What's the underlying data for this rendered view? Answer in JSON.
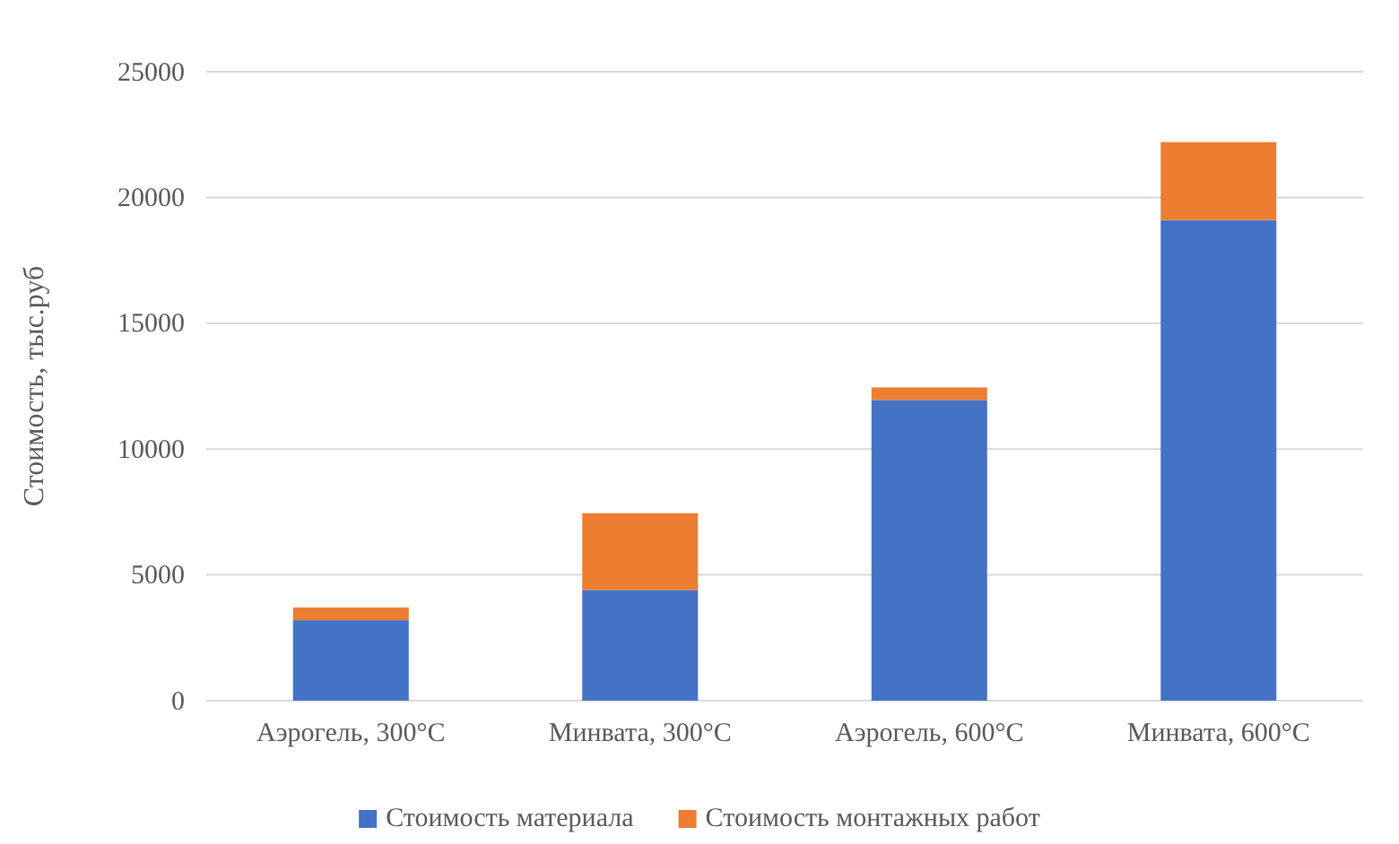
{
  "chart_data": {
    "type": "bar",
    "stacked": true,
    "ylabel": "Стоимость, тыс.руб",
    "categories": [
      "Аэрогель, 300°C",
      "Минвата, 300°C",
      "Аэрогель, 600°C",
      "Минвата, 600°C"
    ],
    "series": [
      {
        "name": "Стоимость материала",
        "color": "#4472c4",
        "values": [
          3200,
          4400,
          11950,
          19100
        ]
      },
      {
        "name": "Стоимость монтажных работ",
        "color": "#ed7d31",
        "values": [
          500,
          3050,
          500,
          3100
        ]
      }
    ],
    "ylim": [
      0,
      25000
    ],
    "yticks": [
      0,
      5000,
      10000,
      15000,
      20000,
      25000
    ],
    "grid": "y",
    "legend": "bottom"
  }
}
